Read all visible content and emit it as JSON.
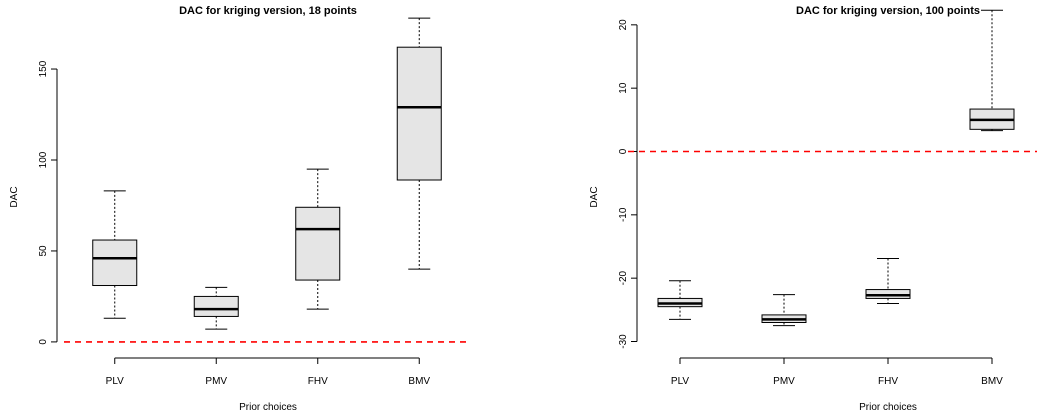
{
  "chart_data": [
    {
      "type": "boxplot",
      "title": "DAC for kriging version, 18 points",
      "xlabel": "Prior choices",
      "ylabel": "DAC",
      "categories": [
        "PLV",
        "PMV",
        "FHV",
        "BMV"
      ],
      "yticks": [
        0,
        50,
        100,
        150
      ],
      "ylim": [
        -5,
        183
      ],
      "reference_line": {
        "y": 0,
        "color": "#ff0000",
        "style": "dashed"
      },
      "box_fill": "#e5e5e5",
      "boxes": [
        {
          "category": "PLV",
          "min": 13,
          "q1": 31,
          "median": 46,
          "q3": 56,
          "max": 83
        },
        {
          "category": "PMV",
          "min": 7,
          "q1": 14,
          "median": 18,
          "q3": 25,
          "max": 30
        },
        {
          "category": "FHV",
          "min": 18,
          "q1": 34,
          "median": 62,
          "q3": 74,
          "max": 95
        },
        {
          "category": "BMV",
          "min": 40,
          "q1": 89,
          "median": 129,
          "q3": 162,
          "max": 178
        }
      ]
    },
    {
      "type": "boxplot",
      "title": "DAC for kriging version, 100 points",
      "xlabel": "Prior choices",
      "ylabel": "DAC",
      "categories": [
        "PLV",
        "PMV",
        "FHV",
        "BMV"
      ],
      "yticks": [
        -30,
        -20,
        -10,
        0,
        10,
        20
      ],
      "ylim": [
        -31.5,
        22.5
      ],
      "reference_line": {
        "y": 0,
        "color": "#ff0000",
        "style": "dashed"
      },
      "box_fill": "#e5e5e5",
      "boxes": [
        {
          "category": "PLV",
          "min": -26.5,
          "q1": -24.5,
          "median": -24.0,
          "q3": -23.2,
          "max": -20.4
        },
        {
          "category": "PMV",
          "min": -27.5,
          "q1": -27.0,
          "median": -26.5,
          "q3": -25.8,
          "max": -22.6
        },
        {
          "category": "FHV",
          "min": -24.0,
          "q1": -23.2,
          "median": -22.7,
          "q3": -21.8,
          "max": -16.9
        },
        {
          "category": "BMV",
          "min": 3.3,
          "q1": 3.5,
          "median": 5.0,
          "q3": 6.7,
          "max": 22.3
        }
      ]
    }
  ]
}
